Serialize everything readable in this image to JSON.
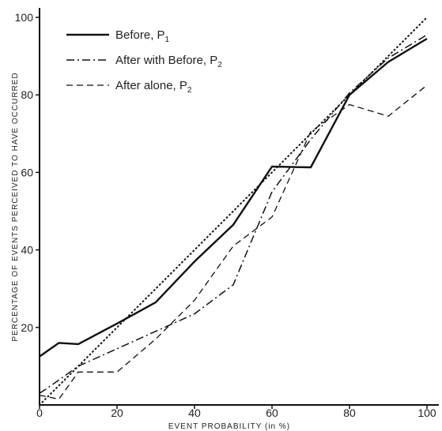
{
  "chart_data": {
    "type": "line",
    "xlabel": "EVENT PROBABILITY (in %)",
    "ylabel": "PERCENTAGE OF EVENTS PERCEIVED TO HAVE OCCURRED",
    "xlim": [
      0,
      100
    ],
    "ylim": [
      0,
      100
    ],
    "x_ticks": [
      "0",
      "20",
      "40",
      "60",
      "80",
      "100"
    ],
    "y_ticks": [
      "20",
      "40",
      "60",
      "80",
      "100"
    ],
    "grid": false,
    "legend_position": "top-left",
    "series": [
      {
        "name": "Before, P",
        "name_subscript": "1",
        "style": "solid",
        "x": [
          0,
          5,
          10,
          20,
          30,
          40,
          50,
          60,
          70,
          80,
          90,
          100
        ],
        "y": [
          12.5,
          16,
          15.7,
          21,
          26.5,
          37,
          46.5,
          61.5,
          61.3,
          80,
          88.5,
          94.5
        ]
      },
      {
        "name": "After with Before, P",
        "name_subscript": "2",
        "style": "dashdot",
        "x": [
          0,
          3,
          10,
          20,
          30,
          40,
          50,
          60,
          70,
          80,
          90,
          100
        ],
        "y": [
          3,
          5,
          10,
          14.5,
          19,
          23.5,
          31,
          55,
          68.5,
          80.5,
          89.5,
          95.5
        ]
      },
      {
        "name": "After alone, P",
        "name_subscript": "2",
        "style": "dashed",
        "x": [
          0,
          5,
          10,
          20,
          30,
          40,
          50,
          60,
          70,
          80,
          90,
          100
        ],
        "y": [
          2.5,
          1.5,
          8.5,
          8.5,
          17,
          27,
          41,
          48.5,
          70.5,
          77.5,
          74.5,
          82.5
        ]
      },
      {
        "style": "dotted",
        "x": [
          0,
          100
        ],
        "y": [
          0,
          100
        ]
      }
    ]
  }
}
